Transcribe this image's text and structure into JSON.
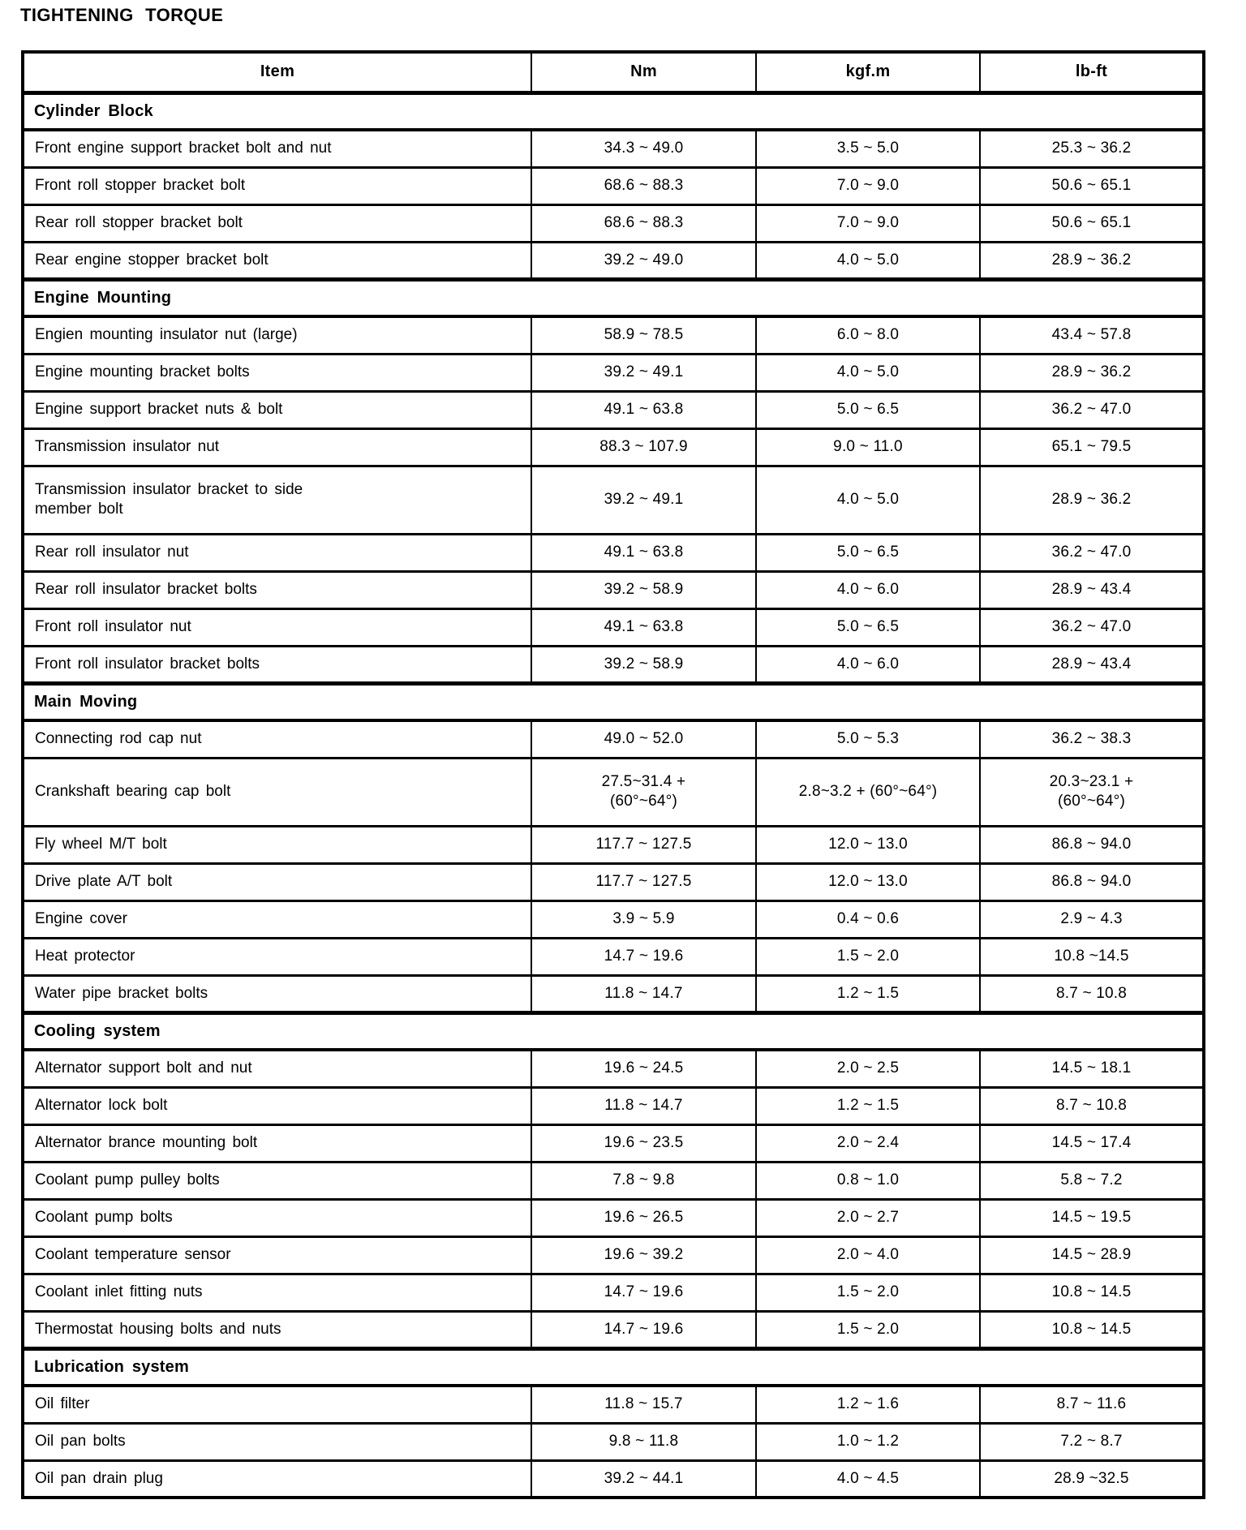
{
  "page": {
    "title": "TIGHTENING TORQUE"
  },
  "table": {
    "columns": [
      "Item",
      "Nm",
      "kgf.m",
      "lb-ft"
    ],
    "sections": [
      {
        "name": "Cylinder Block",
        "rows": [
          {
            "item": "Front engine support bracket bolt and nut",
            "nm": "34.3 ~ 49.0",
            "kgfm": "3.5 ~ 5.0",
            "lbft": "25.3 ~ 36.2"
          },
          {
            "item": "Front roll stopper bracket bolt",
            "nm": "68.6 ~ 88.3",
            "kgfm": "7.0 ~ 9.0",
            "lbft": "50.6 ~ 65.1"
          },
          {
            "item": "Rear roll stopper bracket bolt",
            "nm": "68.6 ~ 88.3",
            "kgfm": "7.0 ~ 9.0",
            "lbft": "50.6 ~ 65.1"
          },
          {
            "item": "Rear engine stopper bracket bolt",
            "nm": "39.2 ~ 49.0",
            "kgfm": "4.0 ~ 5.0",
            "lbft": "28.9 ~ 36.2"
          }
        ]
      },
      {
        "name": "Engine Mounting",
        "rows": [
          {
            "item": "Engien mounting insulator nut (large)",
            "nm": "58.9 ~ 78.5",
            "kgfm": "6.0 ~ 8.0",
            "lbft": "43.4 ~ 57.8"
          },
          {
            "item": "Engine mounting bracket bolts",
            "nm": "39.2 ~ 49.1",
            "kgfm": "4.0 ~ 5.0",
            "lbft": "28.9 ~ 36.2"
          },
          {
            "item": "Engine support bracket nuts & bolt",
            "nm": "49.1 ~ 63.8",
            "kgfm": "5.0 ~ 6.5",
            "lbft": "36.2 ~ 47.0"
          },
          {
            "item": "Transmission insulator nut",
            "nm": "88.3 ~ 107.9",
            "kgfm": "9.0 ~ 11.0",
            "lbft": "65.1 ~ 79.5"
          },
          {
            "item": "Transmission insulator bracket to side\nmember bolt",
            "nm": "39.2 ~ 49.1",
            "kgfm": "4.0 ~ 5.0",
            "lbft": "28.9 ~ 36.2"
          },
          {
            "item": "Rear roll insulator nut",
            "nm": "49.1 ~ 63.8",
            "kgfm": "5.0 ~ 6.5",
            "lbft": "36.2 ~ 47.0"
          },
          {
            "item": "Rear roll insulator bracket bolts",
            "nm": "39.2 ~ 58.9",
            "kgfm": "4.0 ~ 6.0",
            "lbft": "28.9 ~ 43.4"
          },
          {
            "item": "Front roll insulator nut",
            "nm": "49.1 ~ 63.8",
            "kgfm": "5.0 ~ 6.5",
            "lbft": "36.2 ~ 47.0"
          },
          {
            "item": "Front roll insulator bracket bolts",
            "nm": "39.2 ~ 58.9",
            "kgfm": "4.0 ~ 6.0",
            "lbft": "28.9 ~ 43.4"
          }
        ]
      },
      {
        "name": "Main Moving",
        "rows": [
          {
            "item": "Connecting rod cap nut",
            "nm": "49.0 ~ 52.0",
            "kgfm": "5.0 ~ 5.3",
            "lbft": "36.2 ~ 38.3"
          },
          {
            "item": "Crankshaft bearing cap bolt",
            "nm": "27.5~31.4 +\n(60°~64°)",
            "kgfm": "2.8~3.2 + (60°~64°)",
            "lbft": "20.3~23.1 +\n(60°~64°)"
          },
          {
            "item": "Fly wheel M/T bolt",
            "nm": "117.7 ~ 127.5",
            "kgfm": "12.0 ~ 13.0",
            "lbft": "86.8 ~ 94.0"
          },
          {
            "item": "Drive plate A/T bolt",
            "nm": "117.7 ~ 127.5",
            "kgfm": "12.0 ~ 13.0",
            "lbft": "86.8 ~ 94.0"
          },
          {
            "item": "Engine cover",
            "nm": "3.9 ~ 5.9",
            "kgfm": "0.4 ~ 0.6",
            "lbft": "2.9 ~ 4.3"
          },
          {
            "item": "Heat protector",
            "nm": "14.7 ~ 19.6",
            "kgfm": "1.5 ~ 2.0",
            "lbft": "10.8 ~14.5"
          },
          {
            "item": "Water pipe bracket bolts",
            "nm": "11.8 ~ 14.7",
            "kgfm": "1.2 ~ 1.5",
            "lbft": "8.7 ~ 10.8"
          }
        ]
      },
      {
        "name": "Cooling system",
        "rows": [
          {
            "item": "Alternator support bolt and nut",
            "nm": "19.6 ~ 24.5",
            "kgfm": "2.0 ~ 2.5",
            "lbft": "14.5 ~ 18.1"
          },
          {
            "item": "Alternator lock bolt",
            "nm": "11.8 ~ 14.7",
            "kgfm": "1.2 ~ 1.5",
            "lbft": "8.7 ~ 10.8"
          },
          {
            "item": "Alternator brance mounting bolt",
            "nm": "19.6 ~ 23.5",
            "kgfm": "2.0 ~ 2.4",
            "lbft": "14.5 ~ 17.4"
          },
          {
            "item": "Coolant pump pulley bolts",
            "nm": "7.8 ~ 9.8",
            "kgfm": "0.8 ~ 1.0",
            "lbft": "5.8 ~ 7.2"
          },
          {
            "item": "Coolant pump bolts",
            "nm": "19.6 ~ 26.5",
            "kgfm": "2.0 ~ 2.7",
            "lbft": "14.5 ~ 19.5"
          },
          {
            "item": "Coolant temperature sensor",
            "nm": "19.6 ~ 39.2",
            "kgfm": "2.0 ~ 4.0",
            "lbft": "14.5 ~ 28.9"
          },
          {
            "item": "Coolant inlet fitting nuts",
            "nm": "14.7 ~ 19.6",
            "kgfm": "1.5 ~ 2.0",
            "lbft": "10.8 ~ 14.5"
          },
          {
            "item": "Thermostat housing bolts and nuts",
            "nm": "14.7 ~ 19.6",
            "kgfm": "1.5 ~ 2.0",
            "lbft": "10.8 ~ 14.5"
          }
        ]
      },
      {
        "name": "Lubrication system",
        "rows": [
          {
            "item": "Oil filter",
            "nm": "11.8 ~ 15.7",
            "kgfm": "1.2 ~ 1.6",
            "lbft": "8.7 ~ 11.6"
          },
          {
            "item": "Oil pan bolts",
            "nm": "9.8 ~ 11.8",
            "kgfm": "1.0 ~ 1.2",
            "lbft": "7.2 ~ 8.7"
          },
          {
            "item": "Oil pan drain plug",
            "nm": "39.2 ~ 44.1",
            "kgfm": "4.0 ~ 4.5",
            "lbft": "28.9 ~32.5"
          }
        ]
      }
    ]
  }
}
